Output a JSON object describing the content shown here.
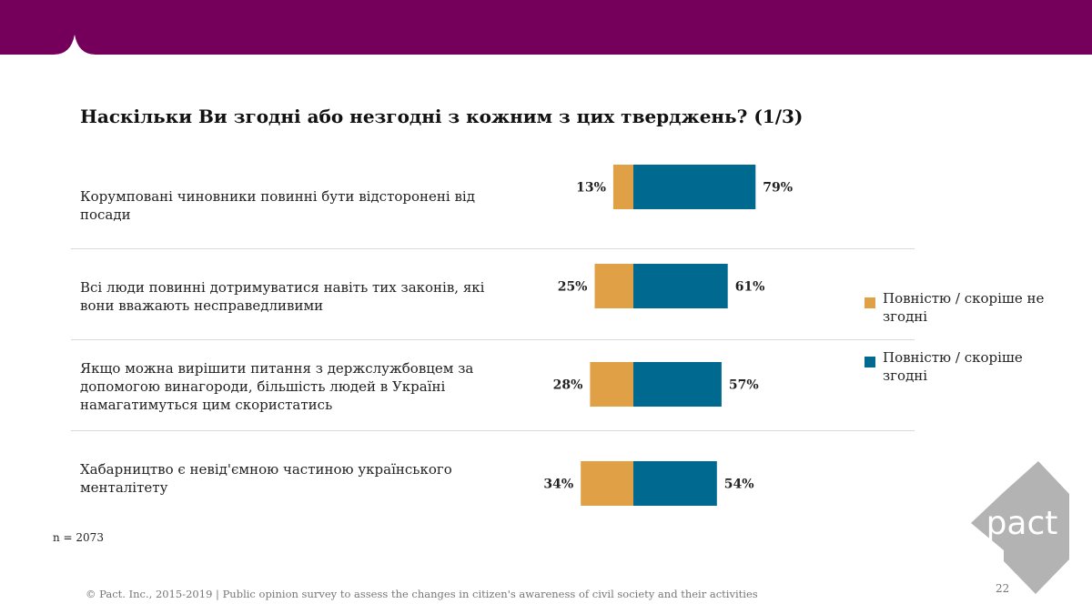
{
  "title": "Наскільки Ви згодні або незгодні з кожним з цих тверджень? (1/3)",
  "colors": {
    "banner": "#75005c",
    "disagree": "#e0a046",
    "agree": "#00698f",
    "logo": "#b3b3b3"
  },
  "chart_data": {
    "type": "bar",
    "orientation": "horizontal-diverging",
    "categories": [
      "Корумповані чиновники повинні бути відсторонені від посади",
      "Всі люди повинні дотримуватися навіть тих законів, які вони вважають несправедливими",
      "Якщо можна вирішити питання з держслужбовцем за допомогою винагороди, більшість людей в Україні намагатимуться цим скористатись",
      "Хабарництво є невід'ємною частиною українського менталітету"
    ],
    "series": [
      {
        "name": "Повністю / скоріше не згодні",
        "values": [
          13,
          25,
          28,
          34
        ],
        "labels": [
          "13%",
          "25%",
          "28%",
          "34%"
        ]
      },
      {
        "name": "Повністю / скоріше згодні",
        "values": [
          79,
          61,
          57,
          54
        ],
        "labels": [
          "79%",
          "61%",
          "57%",
          "54%"
        ]
      }
    ],
    "legend": "right"
  },
  "legend": [
    "Повністю / скоріше не згодні",
    "Повністю / скоріше згодні"
  ],
  "sample": "n = 2073",
  "footer": "© Pact. Inc., 2015-2019 | Public opinion survey to assess the changes in citizen's awareness of civil society and their activities",
  "page_number": "22",
  "logo_text": "pact"
}
